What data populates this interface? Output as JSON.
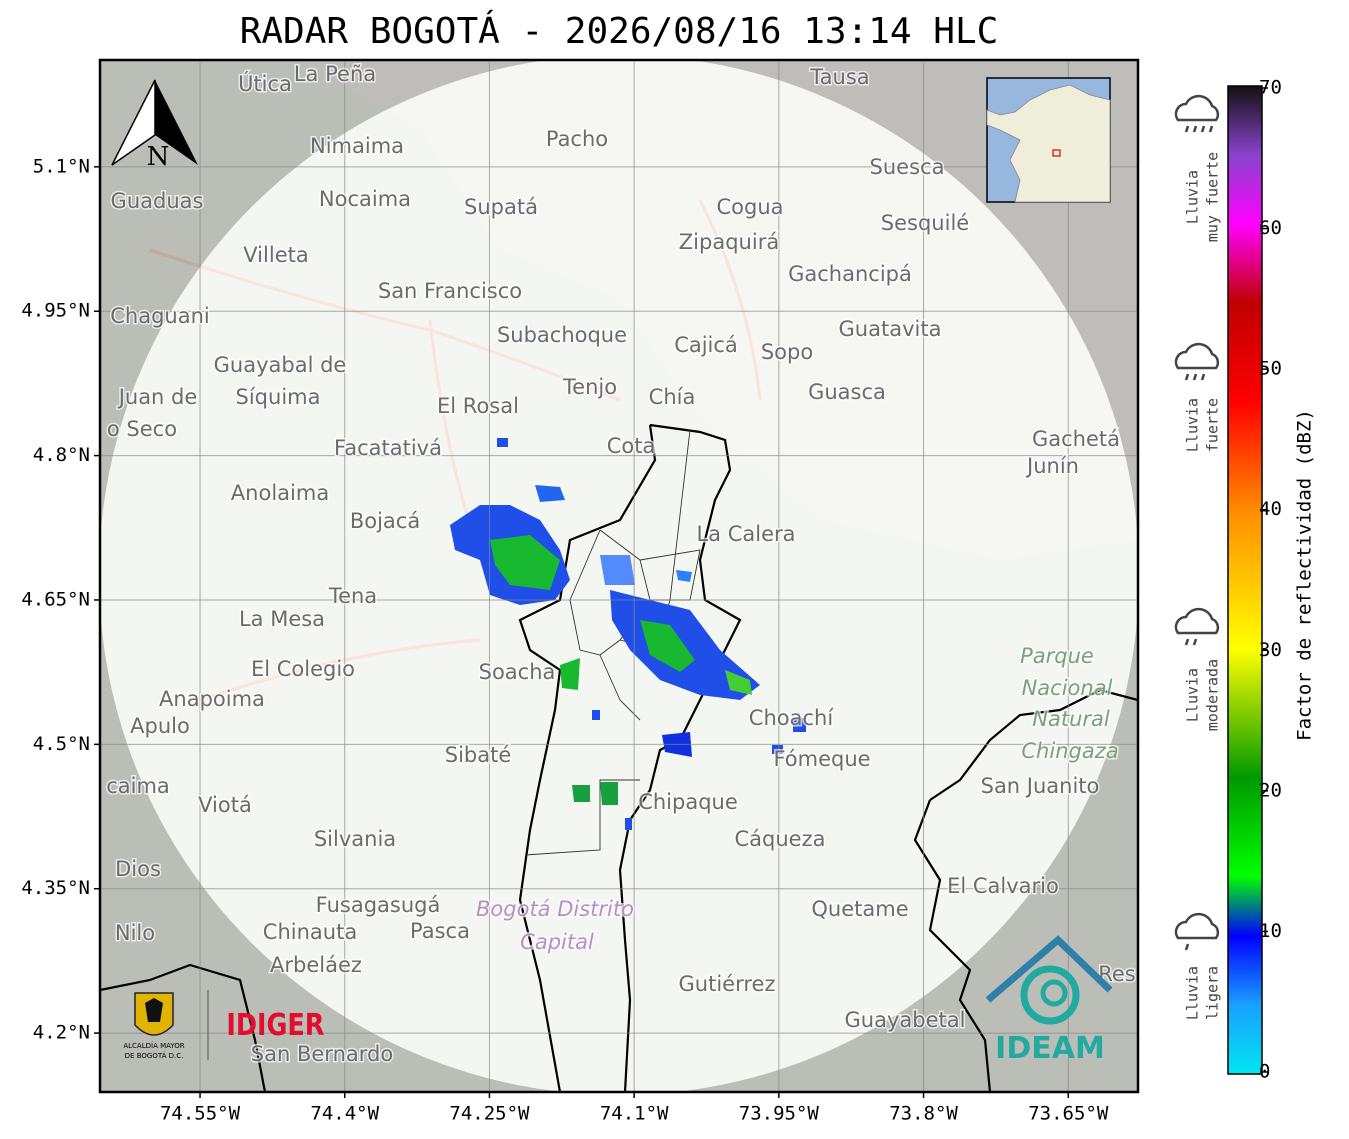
{
  "title": "RADAR BOGOTÁ - 2026/08/16 13:14 HLC",
  "north": "N",
  "map": {
    "xlim": [
      -74.6537,
      -73.5777
    ],
    "ylim": [
      4.1388,
      5.211
    ],
    "xticks": [
      {
        "value": -74.55,
        "label": "74.55°W"
      },
      {
        "value": -74.4,
        "label": "74.4°W"
      },
      {
        "value": -74.25,
        "label": "74.25°W"
      },
      {
        "value": -74.1,
        "label": "74.1°W"
      },
      {
        "value": -73.95,
        "label": "73.95°W"
      },
      {
        "value": -73.8,
        "label": "73.8°W"
      },
      {
        "value": -73.65,
        "label": "73.65°W"
      }
    ],
    "yticks": [
      {
        "value": 5.1,
        "label": "5.1°N"
      },
      {
        "value": 4.95,
        "label": "4.95°N"
      },
      {
        "value": 4.8,
        "label": "4.8°N"
      },
      {
        "value": 4.65,
        "label": "4.65°N"
      },
      {
        "value": 4.5,
        "label": "4.5°N"
      },
      {
        "value": 4.35,
        "label": "4.35°N"
      },
      {
        "value": 4.2,
        "label": "4.2°N"
      }
    ],
    "places": [
      "Útica",
      "La Peña",
      "Tausa",
      "Pacho",
      "Nimaima",
      "Guaduas",
      "Nocaima",
      "Supatá",
      "Cogua",
      "Suesca",
      "Sesquilé",
      "Zipaquirá",
      "Villeta",
      "Gachancipá",
      "San Francisco",
      "Chaguani",
      "Guatavita",
      "Subachoque",
      "Cajicá",
      "Sopo",
      "Guayabal de",
      "Tenjo",
      "Juan de",
      "Síquima",
      "Chía",
      "Guasca",
      "El Rosal",
      "o Seco",
      "Facatativá",
      "Cota",
      "Gachetá",
      "Junín",
      "Anolaima",
      "Bojacá",
      "La Calera",
      "Tena",
      "La Mesa",
      "El Colegio",
      "Soacha",
      "Anapoima",
      "Apulo",
      "Choachí",
      "Sibaté",
      "Fómeque",
      "San Juanito",
      "caima",
      "Viotá",
      "Chipaque",
      "Silvania",
      "Cáqueza",
      "Dios",
      "El Calvario",
      "Fusagasugá",
      "Quetame",
      "Nilo",
      "Chinauta",
      "Pasca",
      "Arbeláez",
      "Gutiérrez",
      "Res",
      "Guayabetal",
      "San Bernardo"
    ],
    "parks": [
      "Parque",
      "Nacional",
      "Natural",
      "Chingaza"
    ],
    "capital": [
      "Bogotá Distrito",
      "Capital"
    ]
  },
  "colorbar": {
    "label": "Factor de reflectividad (dBZ)",
    "lim": [
      0,
      70
    ],
    "ticks": [
      0,
      10,
      20,
      30,
      40,
      50,
      60,
      70
    ]
  },
  "legend": [
    [
      "Lluvia",
      "muy fuerte"
    ],
    [
      "Lluvia",
      "fuerte"
    ],
    [
      "Lluvia",
      "moderada"
    ],
    [
      "Lluvia",
      "ligera"
    ]
  ],
  "logos": {
    "left": [
      "ALCALDÍA MAYOR",
      "DE BOGOTÁ D.C."
    ],
    "idiger": "IDIGER",
    "ideam": "IDEAM"
  }
}
